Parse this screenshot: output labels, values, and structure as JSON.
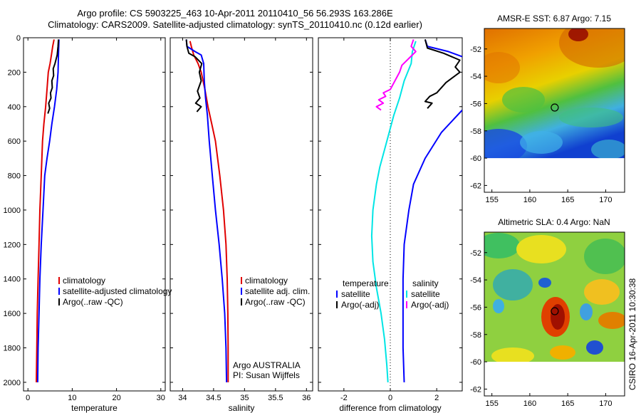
{
  "title": {
    "line1": "Argo profile: CS 5903225_463 10-Apr-2011 20110410_56 56.293S 163.286E",
    "line2": "Climatology: CARS2009. Satellite-adjusted climatology: synTS_20110410.nc (0.12d earlier)"
  },
  "colors": {
    "climatology": "#e00000",
    "satellite": "#0000ff",
    "argo": "#000000",
    "cyan": "#00e5e5",
    "magenta": "#ff00ff"
  },
  "chart_data": [
    {
      "type": "line",
      "id": "temperature",
      "xlabel": "temperature",
      "ylabel": "",
      "xlim": [
        -1,
        31
      ],
      "ylim": [
        2050,
        0
      ],
      "x_ticks": [
        "0",
        "10",
        "20",
        "30"
      ],
      "y_ticks": [
        "0",
        "200",
        "400",
        "600",
        "800",
        "1000",
        "1200",
        "1400",
        "1600",
        "1800",
        "2000"
      ],
      "legend": [
        "climatology",
        "satellite-adjusted climatology",
        "Argo(..raw -QC)"
      ],
      "legend_position": "lower-right",
      "series": [
        {
          "name": "climatology",
          "color": "#e00000",
          "points": [
            [
              5.9,
              10
            ],
            [
              5.6,
              50
            ],
            [
              5.3,
              100
            ],
            [
              5.0,
              150
            ],
            [
              4.6,
              200
            ],
            [
              4.3,
              300
            ],
            [
              4.0,
              400
            ],
            [
              3.6,
              500
            ],
            [
              3.3,
              600
            ],
            [
              3.0,
              800
            ],
            [
              2.7,
              1000
            ],
            [
              2.5,
              1200
            ],
            [
              2.3,
              1400
            ],
            [
              2.1,
              1600
            ],
            [
              2.0,
              1800
            ],
            [
              1.9,
              2000
            ]
          ]
        },
        {
          "name": "satellite-adjusted climatology",
          "color": "#0000ff",
          "points": [
            [
              7.0,
              10
            ],
            [
              6.9,
              100
            ],
            [
              6.8,
              200
            ],
            [
              6.5,
              300
            ],
            [
              6.0,
              400
            ],
            [
              5.4,
              500
            ],
            [
              4.9,
              600
            ],
            [
              4.3,
              700
            ],
            [
              3.8,
              800
            ],
            [
              3.4,
              1000
            ],
            [
              3.0,
              1200
            ],
            [
              2.7,
              1400
            ],
            [
              2.5,
              1600
            ],
            [
              2.3,
              1800
            ],
            [
              2.2,
              2000
            ]
          ]
        },
        {
          "name": "Argo(..raw -QC)",
          "color": "#000000",
          "points": [
            [
              6.9,
              10
            ],
            [
              6.8,
              50
            ],
            [
              6.6,
              100
            ],
            [
              6.1,
              150
            ],
            [
              5.7,
              180
            ],
            [
              5.8,
              220
            ],
            [
              5.4,
              250
            ],
            [
              5.5,
              290
            ],
            [
              5.1,
              320
            ],
            [
              5.2,
              350
            ],
            [
              4.7,
              380
            ],
            [
              4.9,
              410
            ],
            [
              4.5,
              440
            ]
          ]
        }
      ]
    },
    {
      "type": "line",
      "id": "salinity",
      "xlabel": "salinity",
      "ylabel": "",
      "xlim": [
        33.8,
        36.1
      ],
      "ylim": [
        2050,
        0
      ],
      "x_ticks": [
        "34",
        "34.5",
        "35",
        "35.5",
        "36"
      ],
      "legend": [
        "climatology",
        "satellite adj. clim.",
        "Argo(..raw -QC)"
      ],
      "legend_position": "lower-right",
      "annotation": [
        "Argo AUSTRALIA",
        "PI: Susan Wijffels"
      ],
      "series": [
        {
          "name": "climatology",
          "color": "#e00000",
          "points": [
            [
              34.12,
              20
            ],
            [
              34.14,
              50
            ],
            [
              34.18,
              100
            ],
            [
              34.25,
              150
            ],
            [
              34.3,
              200
            ],
            [
              34.36,
              300
            ],
            [
              34.41,
              400
            ],
            [
              34.47,
              500
            ],
            [
              34.53,
              600
            ],
            [
              34.6,
              800
            ],
            [
              34.66,
              1000
            ],
            [
              34.7,
              1200
            ],
            [
              34.72,
              1400
            ],
            [
              34.73,
              1600
            ],
            [
              34.735,
              1800
            ],
            [
              34.735,
              2000
            ]
          ]
        },
        {
          "name": "satellite adj. clim.",
          "color": "#0000ff",
          "points": [
            [
              34.06,
              10
            ],
            [
              34.07,
              50
            ],
            [
              34.2,
              80
            ],
            [
              34.3,
              100
            ],
            [
              34.34,
              150
            ],
            [
              34.35,
              250
            ],
            [
              34.37,
              350
            ],
            [
              34.4,
              450
            ],
            [
              34.43,
              600
            ],
            [
              34.48,
              800
            ],
            [
              34.53,
              1000
            ],
            [
              34.59,
              1200
            ],
            [
              34.64,
              1400
            ],
            [
              34.68,
              1600
            ],
            [
              34.7,
              1800
            ],
            [
              34.71,
              2000
            ]
          ]
        },
        {
          "name": "Argo(..raw -QC)",
          "color": "#000000",
          "points": [
            [
              34.06,
              10
            ],
            [
              34.07,
              50
            ],
            [
              34.1,
              90
            ],
            [
              34.2,
              110
            ],
            [
              34.31,
              150
            ],
            [
              34.27,
              200
            ],
            [
              34.3,
              250
            ],
            [
              34.24,
              310
            ],
            [
              34.28,
              350
            ],
            [
              34.21,
              380
            ],
            [
              34.3,
              400
            ],
            [
              34.23,
              430
            ]
          ]
        }
      ]
    },
    {
      "type": "line",
      "id": "difference",
      "xlabel": "difference from climatology",
      "ylabel": "",
      "xlim": [
        -3.1,
        3.1
      ],
      "ylim": [
        2050,
        0
      ],
      "x_ticks": [
        "-2",
        "0",
        "2"
      ],
      "legend_groups": [
        {
          "heading": "temperature",
          "items": [
            "satellite",
            "Argo(-adj)"
          ]
        },
        {
          "heading": "salinity",
          "items": [
            "satellite",
            "Argo(-adj)"
          ]
        }
      ],
      "legend_position": "lower-center",
      "series": [
        {
          "name": "satellite",
          "group": "temperature",
          "color": "#0000ff",
          "points": [
            [
              1.5,
              10
            ],
            [
              1.6,
              50
            ],
            [
              2.5,
              80
            ],
            [
              3.1,
              110
            ]
          ]
        },
        {
          "name": "satellite",
          "group": "temperature",
          "color": "#0000ff",
          "points": [
            [
              3.1,
              420
            ],
            [
              2.2,
              550
            ],
            [
              1.5,
              700
            ],
            [
              1.0,
              850
            ],
            [
              0.8,
              1000
            ],
            [
              0.6,
              1200
            ],
            [
              0.55,
              1400
            ],
            [
              0.55,
              1600
            ],
            [
              0.55,
              1800
            ],
            [
              0.6,
              2000
            ]
          ]
        },
        {
          "name": "Argo(-adj)",
          "group": "temperature",
          "color": "#000000",
          "points": [
            [
              1.5,
              10
            ],
            [
              1.6,
              60
            ],
            [
              2.3,
              90
            ],
            [
              3.0,
              130
            ],
            [
              2.8,
              170
            ],
            [
              3.0,
              200
            ],
            [
              2.4,
              260
            ],
            [
              2.2,
              290
            ],
            [
              2.0,
              320
            ],
            [
              1.7,
              340
            ],
            [
              1.5,
              370
            ],
            [
              1.8,
              380
            ],
            [
              1.6,
              410
            ]
          ]
        },
        {
          "name": "satellite",
          "group": "salinity",
          "color": "#00e5e5",
          "points": [
            [
              1.1,
              20
            ],
            [
              0.95,
              80
            ],
            [
              0.9,
              150
            ],
            [
              0.6,
              250
            ],
            [
              0.4,
              350
            ],
            [
              0.15,
              450
            ],
            [
              -0.05,
              550
            ],
            [
              -0.25,
              650
            ],
            [
              -0.45,
              750
            ],
            [
              -0.6,
              850
            ],
            [
              -0.75,
              1000
            ],
            [
              -0.8,
              1150
            ],
            [
              -0.75,
              1300
            ],
            [
              -0.6,
              1450
            ],
            [
              -0.4,
              1600
            ],
            [
              -0.25,
              1750
            ],
            [
              -0.15,
              1900
            ],
            [
              -0.1,
              2000
            ]
          ]
        },
        {
          "name": "Argo(-adj)",
          "group": "salinity",
          "color": "#ff00ff",
          "points": [
            [
              1.0,
              10
            ],
            [
              0.9,
              50
            ],
            [
              1.1,
              80
            ],
            [
              0.8,
              120
            ],
            [
              0.5,
              160
            ],
            [
              0.4,
              200
            ],
            [
              0.2,
              250
            ],
            [
              0.0,
              300
            ],
            [
              -0.3,
              320
            ],
            [
              -0.2,
              340
            ],
            [
              -0.5,
              360
            ],
            [
              -0.3,
              380
            ],
            [
              -0.6,
              400
            ],
            [
              -0.4,
              420
            ]
          ]
        }
      ]
    },
    {
      "type": "heatmap",
      "id": "sst-map",
      "title": "AMSR-E SST: 6.87 Argo: 7.15",
      "xlim": [
        154,
        172.5
      ],
      "ylim": [
        -62.5,
        -50.5
      ],
      "x_ticks": [
        "155",
        "160",
        "165",
        "170"
      ],
      "y_ticks": [
        "-52",
        "-54",
        "-56",
        "-58",
        "-60",
        "-62"
      ],
      "data_extent_lat": [
        -60,
        -50.5
      ],
      "marker": {
        "lon": 163.286,
        "lat": -56.293
      }
    },
    {
      "type": "heatmap",
      "id": "sla-map",
      "title": "Altimetric SLA: 0.4 Argo: NaN",
      "xlim": [
        154,
        172.5
      ],
      "ylim": [
        -62.5,
        -50.5
      ],
      "x_ticks": [
        "155",
        "160",
        "165",
        "170"
      ],
      "y_ticks": [
        "-52",
        "-54",
        "-56",
        "-58",
        "-60",
        "-62"
      ],
      "data_extent_lat": [
        -60,
        -50.5
      ],
      "marker": {
        "lon": 163.286,
        "lat": -56.293
      }
    }
  ],
  "footer": "CSIRO 16-Apr-2011 10:30:38"
}
